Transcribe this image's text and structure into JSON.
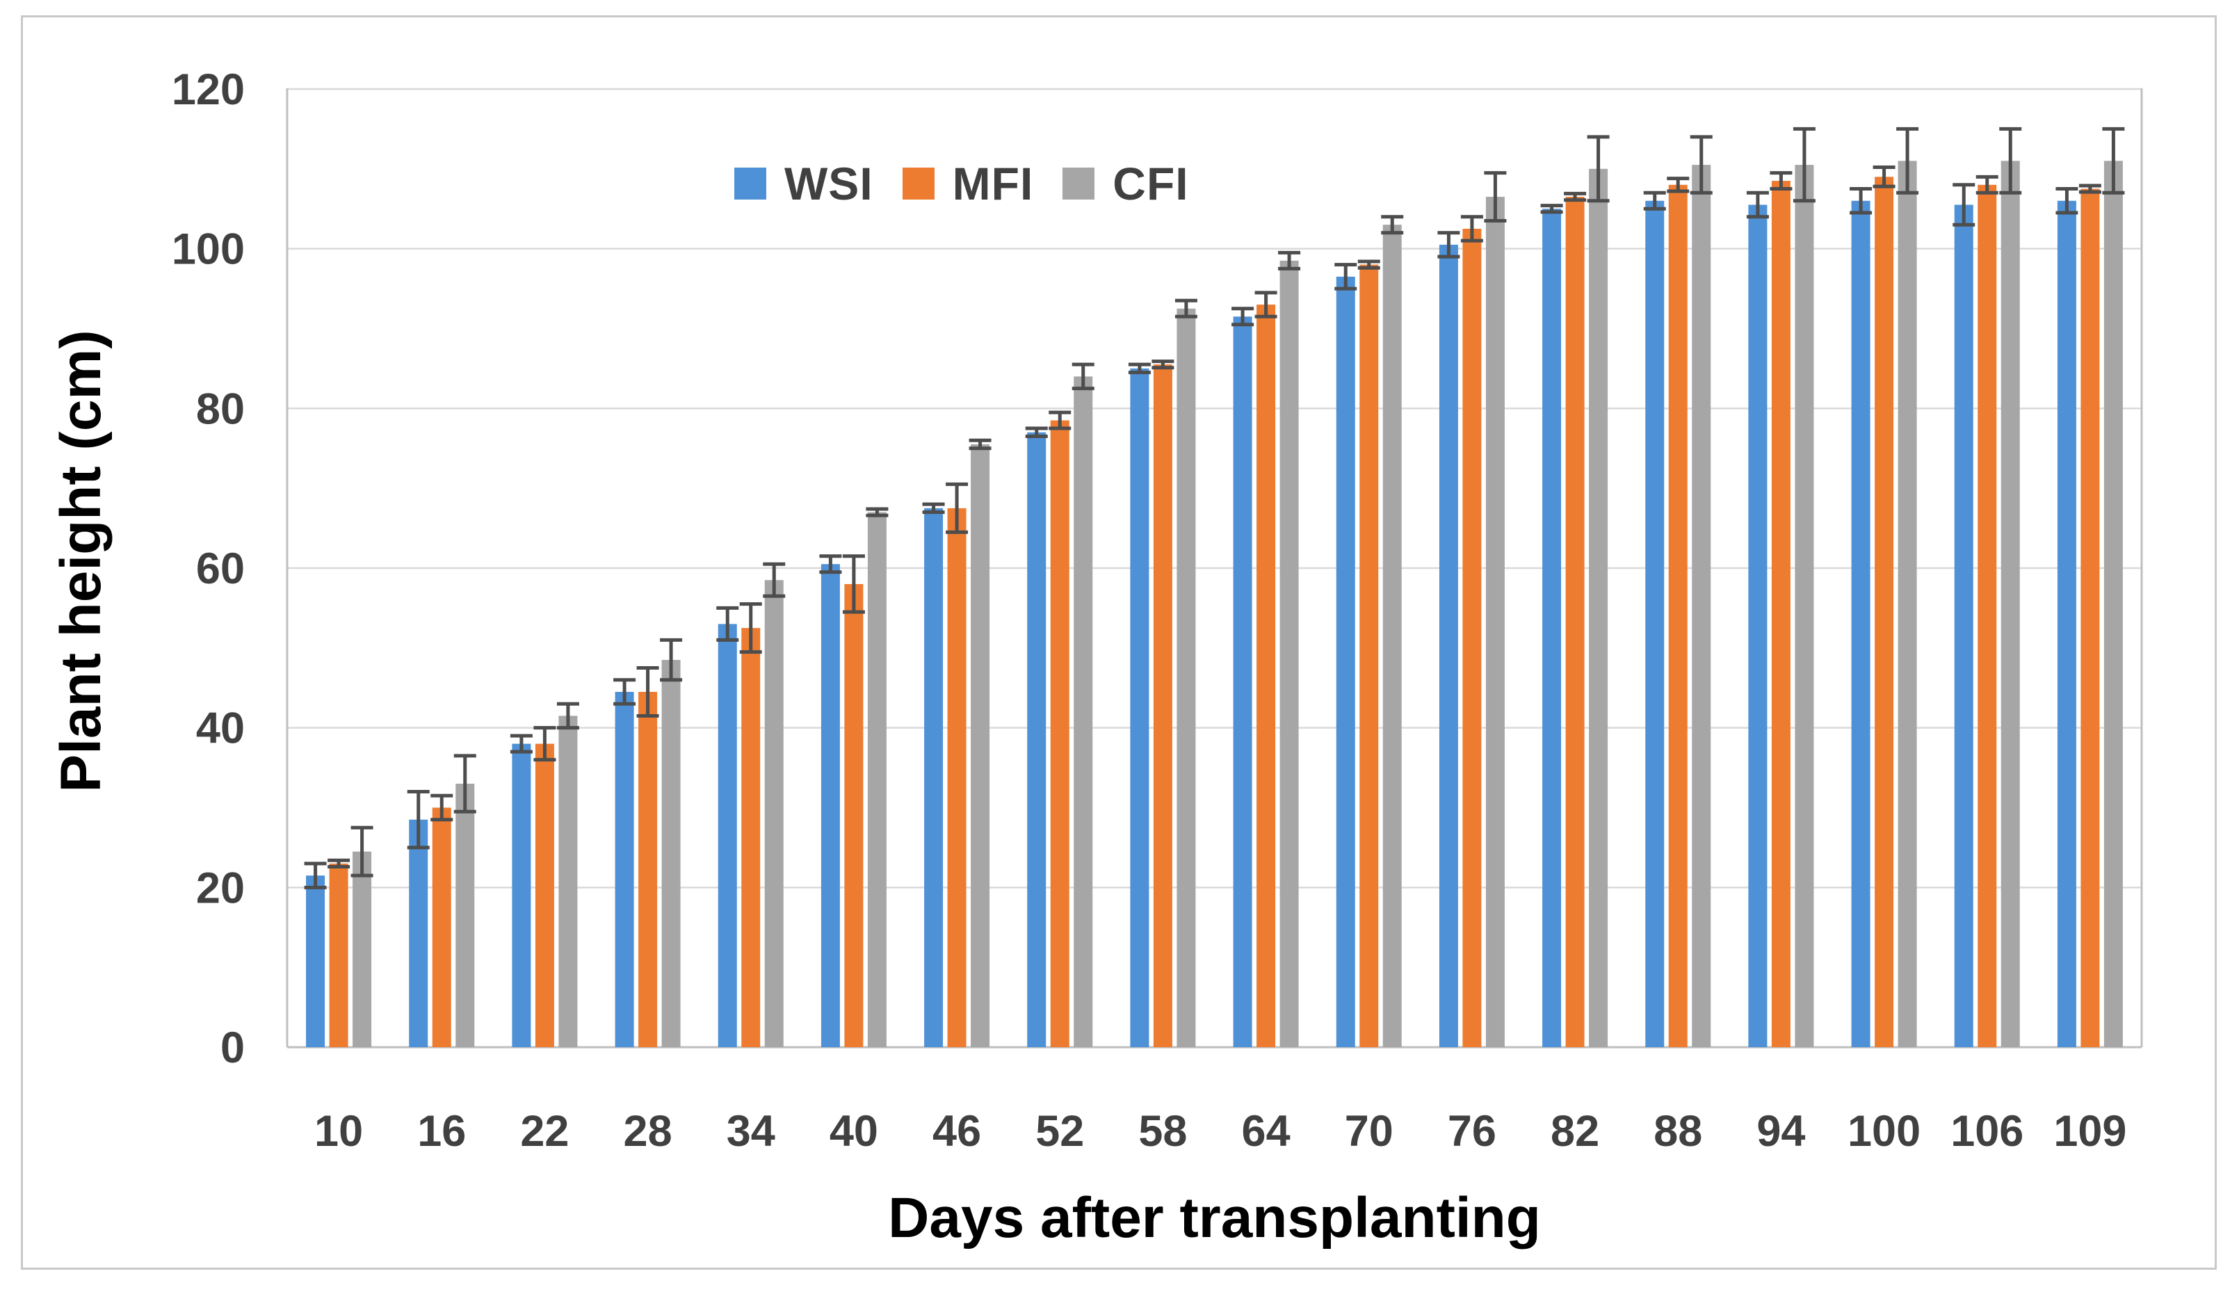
{
  "figure": {
    "background": "#ffffff",
    "border_color": "#c9c9c9"
  },
  "chart_data": {
    "type": "bar",
    "title": "",
    "xlabel": "Days after transplanting",
    "ylabel": "Plant height (cm)",
    "categories": [
      "10",
      "16",
      "22",
      "28",
      "34",
      "40",
      "46",
      "52",
      "58",
      "64",
      "70",
      "76",
      "82",
      "88",
      "94",
      "100",
      "106",
      "109"
    ],
    "series": [
      {
        "name": "WSI",
        "color": "#4E91D6",
        "values": [
          21.5,
          28.5,
          38,
          44.5,
          53,
          60.5,
          67.5,
          77,
          85,
          91.5,
          96.5,
          100.5,
          105,
          106,
          105.5,
          106,
          105.5,
          106
        ],
        "errors": [
          1.5,
          3.5,
          1,
          1.5,
          2,
          1,
          0.5,
          0.5,
          0.5,
          1,
          1.5,
          1.5,
          0.4,
          1,
          1.5,
          1.5,
          2.5,
          1.5
        ]
      },
      {
        "name": "MFI",
        "color": "#ED7C31",
        "values": [
          23,
          30,
          38,
          44.5,
          52.5,
          58,
          67.5,
          78.5,
          85.5,
          93,
          98,
          102.5,
          106.5,
          108,
          108.5,
          109,
          108,
          107.5
        ],
        "errors": [
          0.4,
          1.5,
          2,
          3,
          3,
          3.5,
          3,
          1,
          0.4,
          1.5,
          0.4,
          1.5,
          0.4,
          0.8,
          1,
          1.2,
          1,
          0.4
        ]
      },
      {
        "name": "CFI",
        "color": "#A6A6A6",
        "values": [
          24.5,
          33,
          41.5,
          48.5,
          58.5,
          67,
          75.5,
          84,
          92.5,
          98.5,
          103,
          106.5,
          110,
          110.5,
          110.5,
          111,
          111,
          111
        ],
        "errors": [
          3,
          3.5,
          1.5,
          2.5,
          2,
          0.4,
          0.5,
          1.5,
          1,
          1,
          1,
          3,
          4,
          3.5,
          4.5,
          4,
          4,
          4
        ]
      }
    ],
    "ylim": [
      0,
      120
    ],
    "yticks": [
      0,
      20,
      40,
      60,
      80,
      100,
      120
    ],
    "grid": true,
    "legend_position": "top-center-inside",
    "gridline_color": "#D9D9D9",
    "axis_line_color": "#BFBFBF",
    "error_bar_color": "#4D4D4D",
    "tick_label_color": "#404040"
  }
}
